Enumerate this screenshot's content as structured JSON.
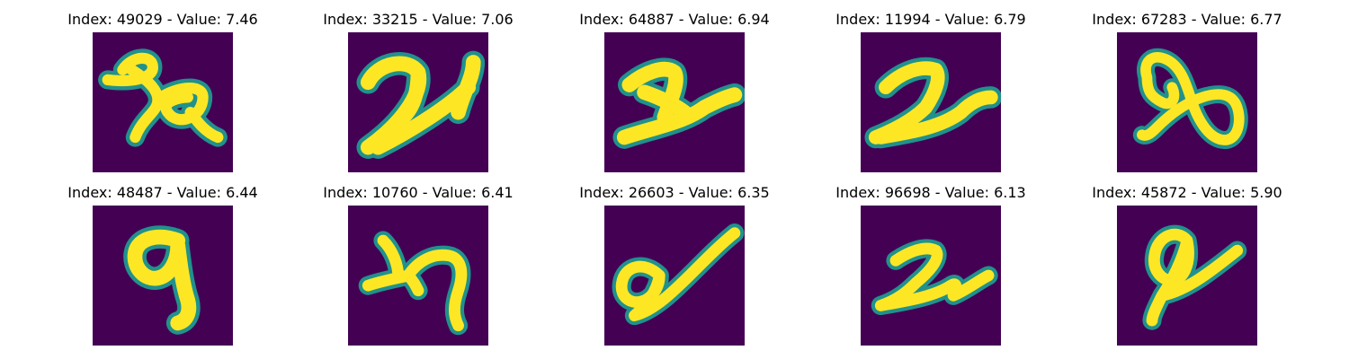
{
  "figure": {
    "background_color": "#440154",
    "stroke_color": "#fde725",
    "edge_color": "#21918c",
    "panels": [
      {
        "title": "Index: 49029 - Value: 7.46",
        "index": "49029",
        "value": "7.46"
      },
      {
        "title": "Index: 33215 - Value: 7.06",
        "index": "33215",
        "value": "7.06"
      },
      {
        "title": "Index: 64887 - Value: 6.94",
        "index": "64887",
        "value": "6.94"
      },
      {
        "title": "Index: 11994 - Value: 6.79",
        "index": "11994",
        "value": "6.79"
      },
      {
        "title": "Index: 67283 - Value: 6.77",
        "index": "67283",
        "value": "6.77"
      },
      {
        "title": "Index: 48487 - Value: 6.44",
        "index": "48487",
        "value": "6.44"
      },
      {
        "title": "Index: 10760 - Value: 6.41",
        "index": "10760",
        "value": "6.41"
      },
      {
        "title": "Index: 26603 - Value: 6.35",
        "index": "26603",
        "value": "6.35"
      },
      {
        "title": "Index: 96698 - Value: 6.13",
        "index": "96698",
        "value": "6.13"
      },
      {
        "title": "Index: 45872 - Value: 5.90",
        "index": "45872",
        "value": "5.90"
      }
    ]
  }
}
